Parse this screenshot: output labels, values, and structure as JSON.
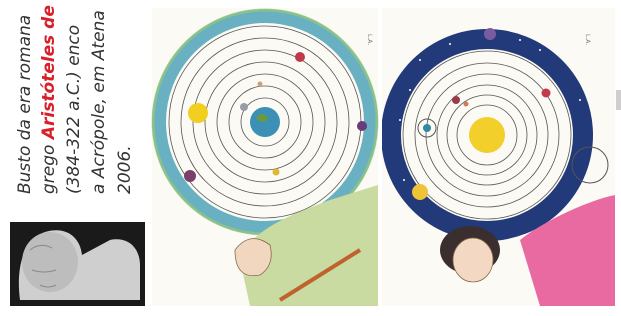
{
  "caption": {
    "lines": [
      [
        "Busto da era romana"
      ],
      [
        "grego ",
        "Aristóteles de E"
      ],
      [
        "(384-322 a.C.) enco"
      ],
      [
        "a Acrópole, em Atena"
      ],
      [
        "2006."
      ]
    ]
  },
  "paintings": [
    {
      "signature": "L.A."
    },
    {
      "signature": "L.A."
    }
  ]
}
